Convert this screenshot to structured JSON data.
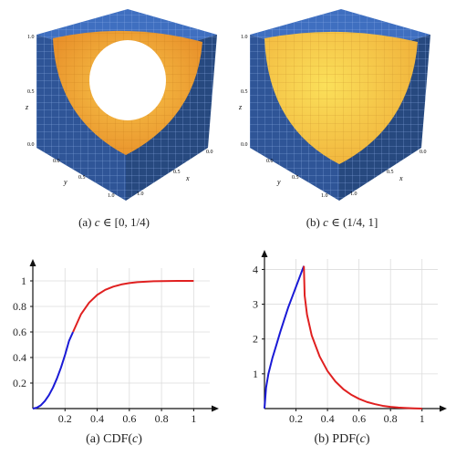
{
  "colors": {
    "cube_top": "#3f6fc0",
    "cube_side": "#2f5597",
    "cube_dark": "#1f3f7a",
    "surface_inner": "#f4a53a",
    "surface_light": "#f8d24a",
    "cdf_blue": "#1a1ad6",
    "cdf_red": "#e02020"
  },
  "panels": {
    "cube_a": {
      "axis_labels": {
        "x": "x",
        "y": "y",
        "z": "z"
      },
      "z_ticks": [
        "0.0",
        "0.5",
        "1.0"
      ],
      "x_ticks": [
        "0.0",
        "0.5",
        "1.0"
      ],
      "y_ticks": [
        "0.0",
        "0.5",
        "1.0"
      ],
      "caption_prefix": "(a) ",
      "caption_var": "c",
      "caption_suffix": " ∈ [0, 1/4)"
    },
    "cube_b": {
      "axis_labels": {
        "x": "x",
        "y": "y",
        "z": "z"
      },
      "z_ticks": [
        "0.0",
        "0.5",
        "1.0"
      ],
      "x_ticks": [
        "0.0",
        "0.5",
        "1.0"
      ],
      "y_ticks": [
        "0.0",
        "0.5",
        "1.0"
      ],
      "caption_prefix": "(b) ",
      "caption_var": "c",
      "caption_suffix": " ∈ (1/4, 1]"
    }
  },
  "chart_data": [
    {
      "type": "line",
      "caption_prefix": "(a) CDF(",
      "caption_var": "c",
      "caption_suffix": ")",
      "xlim": [
        0,
        1.1
      ],
      "ylim": [
        0,
        1.1
      ],
      "x_ticks": [
        0.2,
        0.4,
        0.6,
        0.8,
        1
      ],
      "x_tick_labels": [
        "0.2",
        "0.4",
        "0.6",
        "0.8",
        "1"
      ],
      "y_ticks": [
        0.2,
        0.4,
        0.6,
        0.8,
        1
      ],
      "y_tick_labels": [
        "0.2",
        "0.4",
        "0.6",
        "0.8",
        "1"
      ],
      "grid": true,
      "series": [
        {
          "color": "#1a1ad6",
          "x": [
            0,
            0.025,
            0.05,
            0.075,
            0.1,
            0.125,
            0.15,
            0.175,
            0.2,
            0.225,
            0.25
          ],
          "y": [
            0,
            0.007,
            0.026,
            0.059,
            0.105,
            0.164,
            0.236,
            0.321,
            0.419,
            0.53,
            0.6
          ]
        },
        {
          "color": "#e02020",
          "x": [
            0.25,
            0.3,
            0.35,
            0.4,
            0.45,
            0.5,
            0.55,
            0.6,
            0.65,
            0.7,
            0.75,
            0.8,
            0.85,
            0.9,
            0.95,
            1
          ],
          "y": [
            0.6,
            0.74,
            0.83,
            0.89,
            0.93,
            0.955,
            0.972,
            0.983,
            0.99,
            0.994,
            0.997,
            0.998,
            0.999,
            1,
            1,
            1
          ]
        }
      ]
    },
    {
      "type": "line",
      "caption_prefix": "(b) PDF(",
      "caption_var": "c",
      "caption_suffix": ")",
      "xlim": [
        0,
        1.1
      ],
      "ylim": [
        0,
        4.3
      ],
      "x_ticks": [
        0.2,
        0.4,
        0.6,
        0.8,
        1
      ],
      "x_tick_labels": [
        "0.2",
        "0.4",
        "0.6",
        "0.8",
        "1"
      ],
      "y_ticks": [
        1,
        2,
        3,
        4
      ],
      "y_tick_labels": [
        "1",
        "2",
        "3",
        "4"
      ],
      "grid": true,
      "series": [
        {
          "color": "#1a1ad6",
          "x": [
            0,
            0.01,
            0.025,
            0.05,
            0.075,
            0.1,
            0.125,
            0.15,
            0.175,
            0.2,
            0.225,
            0.25
          ],
          "y": [
            0,
            0.6,
            1.0,
            1.45,
            1.82,
            2.2,
            2.55,
            2.9,
            3.2,
            3.5,
            3.8,
            4.1
          ]
        },
        {
          "color": "#e02020",
          "x": [
            0.25,
            0.255,
            0.27,
            0.3,
            0.35,
            0.4,
            0.45,
            0.5,
            0.55,
            0.6,
            0.65,
            0.7,
            0.75,
            0.8,
            0.85,
            0.9,
            0.95,
            1
          ],
          "y": [
            4.1,
            3.25,
            2.7,
            2.1,
            1.5,
            1.08,
            0.78,
            0.56,
            0.4,
            0.28,
            0.19,
            0.13,
            0.08,
            0.05,
            0.03,
            0.015,
            0.005,
            0
          ]
        }
      ]
    }
  ]
}
